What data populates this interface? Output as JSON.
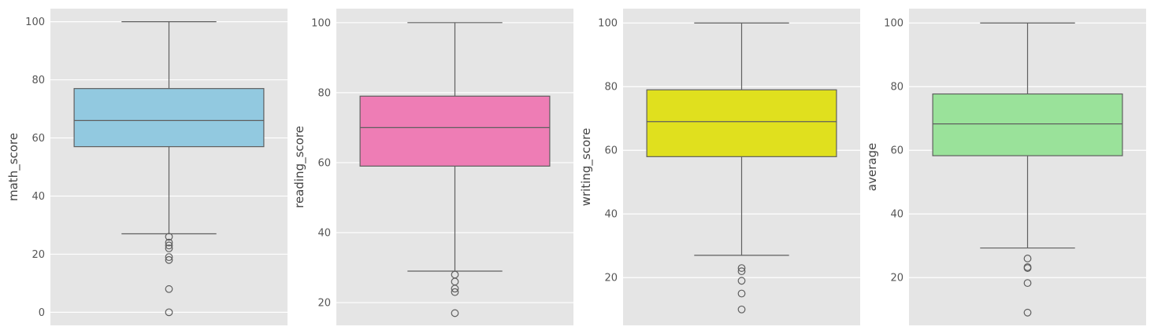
{
  "chart_data": [
    {
      "type": "box",
      "ylabel": "math_score",
      "color": "#92C9E0",
      "ylim": [
        -4.5,
        104.5
      ],
      "yticks": [
        0,
        20,
        40,
        60,
        80,
        100
      ],
      "box": {
        "whisker_low": 27,
        "q1": 57,
        "median": 66,
        "q3": 77,
        "whisker_high": 100
      },
      "outliers": [
        26,
        24,
        23,
        22,
        19,
        18,
        8,
        0
      ]
    },
    {
      "type": "box",
      "ylabel": "reading_score",
      "color": "#EE7DB5",
      "ylim": [
        13.5,
        104
      ],
      "yticks": [
        20,
        40,
        60,
        80,
        100
      ],
      "box": {
        "whisker_low": 29,
        "q1": 59,
        "median": 70,
        "q3": 79,
        "whisker_high": 100
      },
      "outliers": [
        28,
        26,
        24,
        23,
        17
      ]
    },
    {
      "type": "box",
      "ylabel": "writing_score",
      "color": "#E0E01E",
      "ylim": [
        5,
        104.5
      ],
      "yticks": [
        20,
        40,
        60,
        80,
        100
      ],
      "box": {
        "whisker_low": 27,
        "q1": 58,
        "median": 69,
        "q3": 79,
        "whisker_high": 100
      },
      "outliers": [
        23,
        22,
        19,
        15,
        10
      ]
    },
    {
      "type": "box",
      "ylabel": "average",
      "color": "#9AE29A",
      "ylim": [
        5,
        104.5
      ],
      "yticks": [
        20,
        40,
        60,
        80,
        100
      ],
      "box": {
        "whisker_low": 29.3,
        "q1": 58.3,
        "median": 68.3,
        "q3": 77.7,
        "whisker_high": 100
      },
      "outliers": [
        26,
        23.3,
        23,
        18.3,
        9
      ]
    }
  ]
}
